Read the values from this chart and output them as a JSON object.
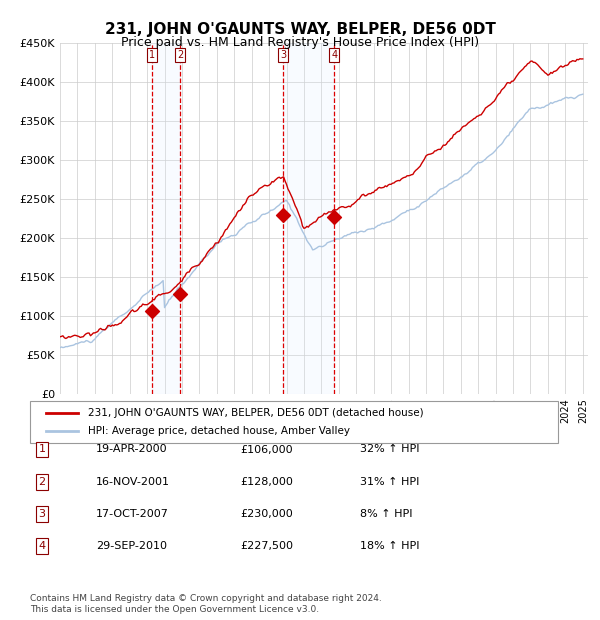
{
  "title": "231, JOHN O'GAUNTS WAY, BELPER, DE56 0DT",
  "subtitle": "Price paid vs. HM Land Registry's House Price Index (HPI)",
  "xlabel": "",
  "ylabel": "",
  "ylim": [
    0,
    450000
  ],
  "yticks": [
    0,
    50000,
    100000,
    150000,
    200000,
    250000,
    300000,
    350000,
    400000,
    450000
  ],
  "ytick_labels": [
    "£0",
    "£50K",
    "£100K",
    "£150K",
    "£200K",
    "£250K",
    "£300K",
    "£350K",
    "£400K",
    "£450K"
  ],
  "sale_dates_num": [
    2000.3,
    2001.88,
    2007.8,
    2010.75
  ],
  "sale_prices": [
    106000,
    128000,
    230000,
    227500
  ],
  "sale_labels": [
    "1",
    "2",
    "3",
    "4"
  ],
  "hpi_line_color": "#aac4e0",
  "price_line_color": "#cc0000",
  "marker_color": "#cc0000",
  "shade_color": "#ddeeff",
  "dashed_line_color": "#dd0000",
  "legend_box_color": "#cc0000",
  "footer_text": "Contains HM Land Registry data © Crown copyright and database right 2024.\nThis data is licensed under the Open Government Licence v3.0.",
  "legend_entry1": "231, JOHN O'GAUNTS WAY, BELPER, DE56 0DT (detached house)",
  "legend_entry2": "HPI: Average price, detached house, Amber Valley",
  "table_rows": [
    [
      "1",
      "19-APR-2000",
      "£106,000",
      "32% ↑ HPI"
    ],
    [
      "2",
      "16-NOV-2001",
      "£128,000",
      "31% ↑ HPI"
    ],
    [
      "3",
      "17-OCT-2007",
      "£230,000",
      "8% ↑ HPI"
    ],
    [
      "4",
      "29-SEP-2010",
      "£227,500",
      "18% ↑ HPI"
    ]
  ]
}
